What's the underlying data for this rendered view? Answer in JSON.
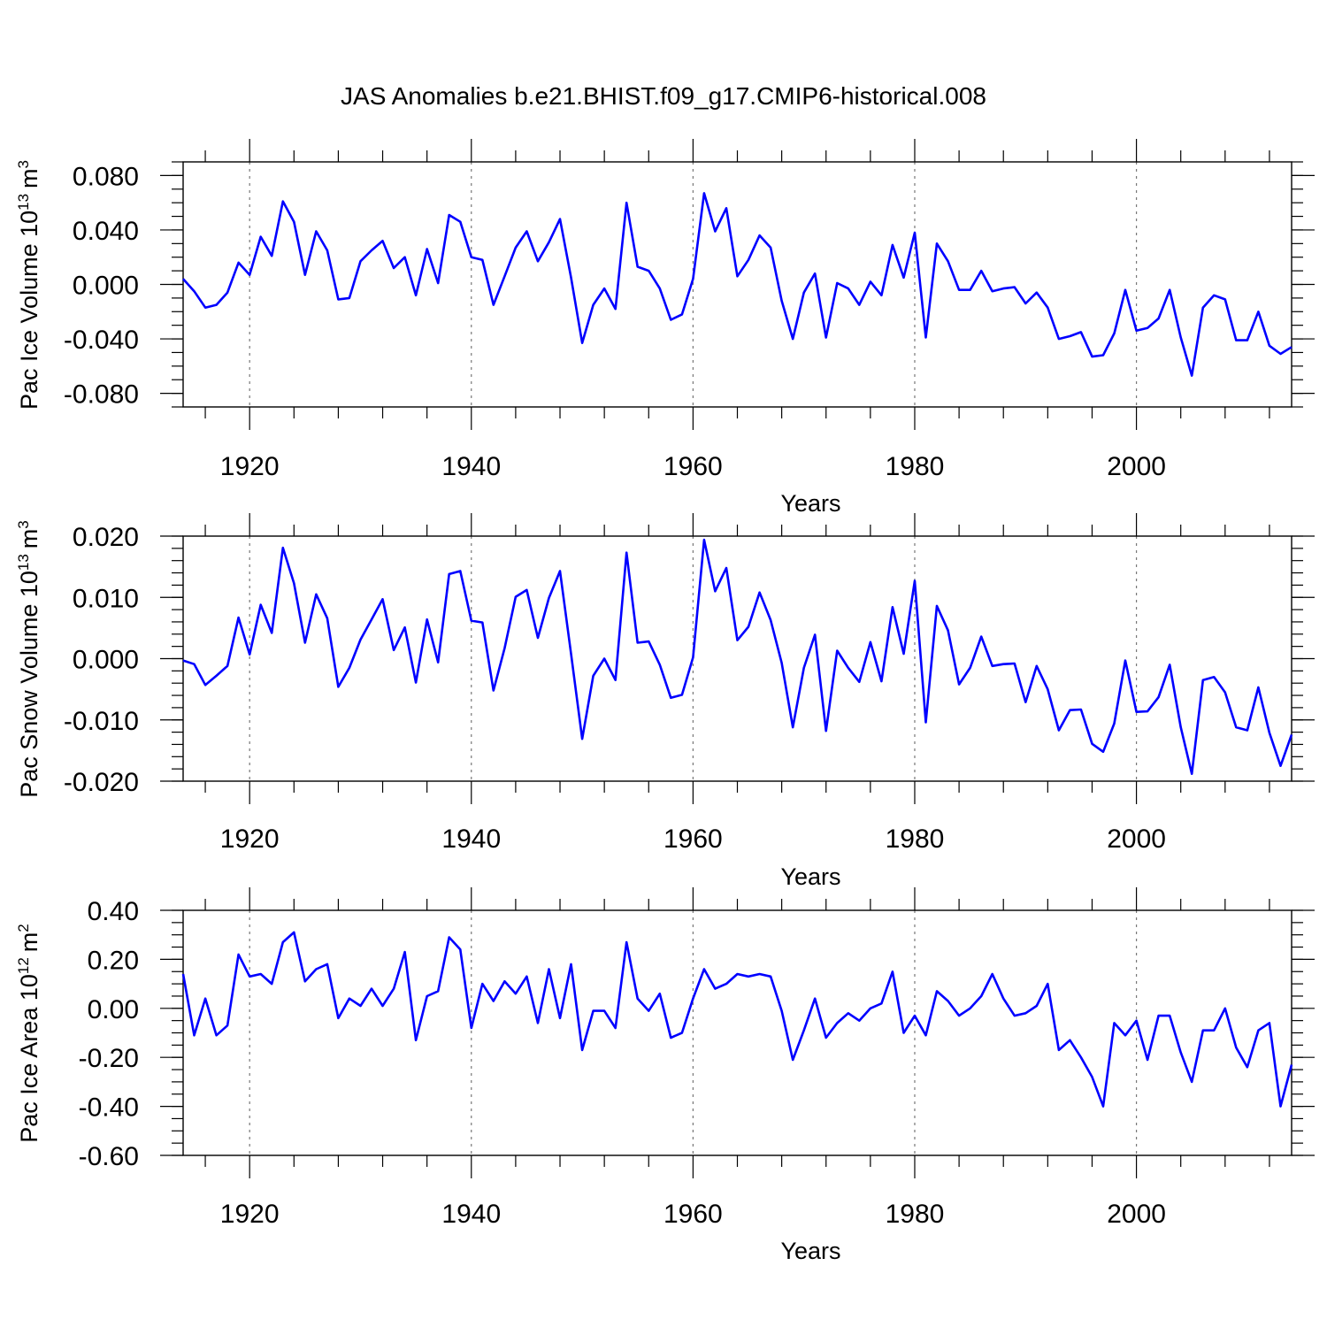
{
  "title": "JAS Anomalies b.e21.BHIST.f09_g17.CMIP6-historical.008",
  "chart_data": [
    {
      "type": "line",
      "ylabel": {
        "text": "Pac Ice Volume 10",
        "exp": "13",
        "unit": "m",
        "unit_exp": "3"
      },
      "xlabel": "Years",
      "xlim": [
        1914,
        2014
      ],
      "ylim": [
        -0.09,
        0.09
      ],
      "x_ticks": [
        "1920",
        "1940",
        "1960",
        "1980",
        "2000"
      ],
      "y_ticks": [
        "0.080",
        "0.040",
        "0.000",
        "-0.040",
        "-0.080"
      ],
      "y_tick_values": [
        0.08,
        0.04,
        0.0,
        -0.04,
        -0.08
      ],
      "y_minor_step": 0.01,
      "grid": "vertical dashed at major x ticks",
      "color": "#0000ff",
      "x_start": 1914,
      "values": [
        0.004,
        -0.005,
        -0.017,
        -0.015,
        -0.006,
        0.016,
        0.007,
        0.035,
        0.021,
        0.061,
        0.046,
        0.007,
        0.039,
        0.025,
        -0.011,
        -0.01,
        0.017,
        0.025,
        0.032,
        0.012,
        0.02,
        -0.008,
        0.026,
        0.001,
        0.051,
        0.046,
        0.02,
        0.018,
        -0.015,
        0.006,
        0.027,
        0.039,
        0.017,
        0.031,
        0.048,
        0.005,
        -0.043,
        -0.015,
        -0.003,
        -0.018,
        0.06,
        0.013,
        0.01,
        -0.003,
        -0.026,
        -0.022,
        0.004,
        0.067,
        0.039,
        0.056,
        0.006,
        0.018,
        0.036,
        0.027,
        -0.012,
        -0.04,
        -0.006,
        0.008,
        -0.039,
        0.001,
        -0.003,
        -0.015,
        0.002,
        -0.008,
        0.029,
        0.005,
        0.038,
        -0.039,
        0.03,
        0.017,
        -0.004,
        -0.004,
        0.01,
        -0.005,
        -0.003,
        -0.002,
        -0.014,
        -0.006,
        -0.017,
        -0.04,
        -0.038,
        -0.035,
        -0.053,
        -0.052,
        -0.036,
        -0.004,
        -0.034,
        -0.032,
        -0.025,
        -0.004,
        -0.039,
        -0.067,
        -0.017,
        -0.008,
        -0.011,
        -0.041,
        -0.041,
        -0.02,
        -0.045,
        -0.051,
        -0.046
      ]
    },
    {
      "type": "line",
      "ylabel": {
        "text": "Pac Snow Volume 10",
        "exp": "13",
        "unit": "m",
        "unit_exp": "3"
      },
      "xlabel": "Years",
      "xlim": [
        1914,
        2014
      ],
      "ylim": [
        -0.02,
        0.02
      ],
      "x_ticks": [
        "1920",
        "1940",
        "1960",
        "1980",
        "2000"
      ],
      "y_ticks": [
        "0.020",
        "0.010",
        "0.000",
        "-0.010",
        "-0.020"
      ],
      "y_tick_values": [
        0.02,
        0.01,
        0.0,
        -0.01,
        -0.02
      ],
      "y_minor_step": 0.002,
      "grid": "vertical dashed at major x ticks",
      "color": "#0000ff",
      "x_start": 1914,
      "values": [
        -0.0003,
        -0.0009,
        -0.0043,
        -0.0028,
        -0.0012,
        0.0067,
        0.0007,
        0.0088,
        0.0042,
        0.0181,
        0.0123,
        0.0026,
        0.0105,
        0.0066,
        -0.0046,
        -0.0015,
        0.0031,
        0.0064,
        0.0097,
        0.0014,
        0.0051,
        -0.0039,
        0.0064,
        -0.0006,
        0.0138,
        0.0143,
        0.0062,
        0.0059,
        -0.0052,
        0.0017,
        0.0101,
        0.0112,
        0.0034,
        0.0099,
        0.0143,
        0.0008,
        -0.0131,
        -0.0028,
        0.0,
        -0.0035,
        0.0173,
        0.0026,
        0.0028,
        -0.001,
        -0.0064,
        -0.0059,
        0.0002,
        0.0194,
        0.011,
        0.0148,
        0.003,
        0.0052,
        0.0108,
        0.0063,
        -0.0007,
        -0.0112,
        -0.0015,
        0.0039,
        -0.0118,
        0.0013,
        -0.0015,
        -0.0038,
        0.0027,
        -0.0037,
        0.0084,
        0.0008,
        0.0127,
        -0.0104,
        0.0086,
        0.0046,
        -0.0042,
        -0.0015,
        0.0036,
        -0.0012,
        -0.0009,
        -0.0008,
        -0.0071,
        -0.0012,
        -0.005,
        -0.0117,
        -0.0084,
        -0.0083,
        -0.0139,
        -0.0152,
        -0.0106,
        -0.0003,
        -0.0087,
        -0.0086,
        -0.0063,
        -0.001,
        -0.0112,
        -0.0188,
        -0.0035,
        -0.003,
        -0.0055,
        -0.0112,
        -0.0117,
        -0.0047,
        -0.0121,
        -0.0175,
        -0.0124
      ]
    },
    {
      "type": "line",
      "ylabel": {
        "text": "Pac Ice Area 10",
        "exp": "12",
        "unit": "m",
        "unit_exp": "2"
      },
      "xlabel": "Years",
      "xlim": [
        1914,
        2014
      ],
      "ylim": [
        -0.6,
        0.4
      ],
      "x_ticks": [
        "1920",
        "1940",
        "1960",
        "1980",
        "2000"
      ],
      "y_ticks": [
        "0.40",
        "0.20",
        "0.00",
        "-0.20",
        "-0.40",
        "-0.60"
      ],
      "y_tick_values": [
        0.4,
        0.2,
        0.0,
        -0.2,
        -0.4,
        -0.6
      ],
      "y_minor_step": 0.05,
      "grid": "vertical dashed at major x ticks",
      "color": "#0000ff",
      "x_start": 1914,
      "values": [
        0.14,
        -0.11,
        0.04,
        -0.11,
        -0.07,
        0.22,
        0.13,
        0.14,
        0.1,
        0.27,
        0.31,
        0.11,
        0.16,
        0.18,
        -0.04,
        0.04,
        0.01,
        0.08,
        0.01,
        0.08,
        0.23,
        -0.13,
        0.05,
        0.07,
        0.29,
        0.24,
        -0.08,
        0.1,
        0.03,
        0.11,
        0.06,
        0.13,
        -0.06,
        0.16,
        -0.04,
        0.18,
        -0.17,
        -0.01,
        -0.01,
        -0.08,
        0.27,
        0.04,
        -0.01,
        0.06,
        -0.12,
        -0.1,
        0.04,
        0.16,
        0.08,
        0.1,
        0.14,
        0.13,
        0.14,
        0.13,
        -0.01,
        -0.21,
        -0.09,
        0.04,
        -0.12,
        -0.06,
        -0.02,
        -0.05,
        0.0,
        0.02,
        0.15,
        -0.1,
        -0.03,
        -0.11,
        0.07,
        0.03,
        -0.03,
        0.0,
        0.05,
        0.14,
        0.04,
        -0.03,
        -0.02,
        0.01,
        0.1,
        -0.17,
        -0.13,
        -0.2,
        -0.28,
        -0.4,
        -0.06,
        -0.11,
        -0.05,
        -0.21,
        -0.03,
        -0.03,
        -0.18,
        -0.3,
        -0.09,
        -0.09,
        0.0,
        -0.16,
        -0.24,
        -0.09,
        -0.06,
        -0.4,
        -0.23
      ]
    }
  ]
}
